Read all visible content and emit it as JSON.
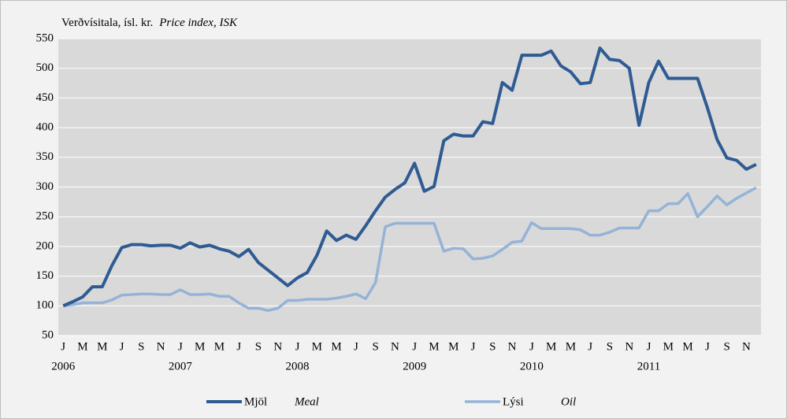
{
  "chart_data": {
    "type": "line",
    "title": {
      "text": "Verðvísitala, ísl. kr.",
      "italic": "Price index, ISK"
    },
    "categories": [
      "J",
      null,
      "M",
      null,
      "M",
      null,
      "J",
      null,
      "S",
      null,
      "N",
      null,
      "J",
      null,
      "M",
      null,
      "M",
      null,
      "J",
      null,
      "S",
      null,
      "N",
      null,
      "J",
      null,
      "M",
      null,
      "M",
      null,
      "J",
      null,
      "S",
      null,
      "N",
      null,
      "J",
      null,
      "M",
      null,
      "M",
      null,
      "J",
      null,
      "S",
      null,
      "N",
      null,
      "J",
      null,
      "M",
      null,
      "M",
      null,
      "J",
      null,
      "S",
      null,
      "N",
      null,
      "J",
      null,
      "M",
      null,
      "M",
      null,
      "J",
      null,
      "S",
      null,
      "N",
      null
    ],
    "years": [
      "2006",
      "2007",
      "2008",
      "2009",
      "2010",
      "2011"
    ],
    "series": [
      {
        "name": "Mjöl",
        "name_italic": "Meal",
        "color": "#2f5b93",
        "values": [
          100,
          107,
          115,
          132,
          132,
          168,
          198,
          203,
          203,
          201,
          202,
          202,
          197,
          206,
          199,
          202,
          196,
          192,
          183,
          195,
          173,
          160,
          147,
          134,
          147,
          156,
          185,
          226,
          210,
          219,
          212,
          235,
          260,
          283,
          296,
          307,
          340,
          293,
          301,
          378,
          389,
          386,
          386,
          410,
          407,
          476,
          463,
          522,
          522,
          522,
          529,
          504,
          494,
          474,
          476,
          534,
          515,
          513,
          500,
          404,
          476,
          512,
          483,
          483,
          483,
          483,
          434,
          380,
          349,
          345,
          330,
          338
        ]
      },
      {
        "name": "Lýsi",
        "name_italic": "Oil",
        "color": "#95b3d7",
        "values": [
          100,
          102,
          105,
          105,
          105,
          110,
          118,
          119,
          120,
          120,
          119,
          119,
          127,
          119,
          119,
          120,
          116,
          116,
          105,
          96,
          96,
          92,
          96,
          109,
          109,
          111,
          111,
          111,
          113,
          116,
          120,
          112,
          139,
          233,
          239,
          239,
          239,
          239,
          239,
          192,
          197,
          196,
          179,
          180,
          184,
          195,
          207,
          209,
          240,
          230,
          230,
          230,
          230,
          228,
          219,
          219,
          224,
          231,
          231,
          231,
          260,
          260,
          272,
          272,
          289,
          250,
          267,
          285,
          270,
          281,
          290,
          299
        ]
      }
    ],
    "ylim": [
      50,
      550
    ],
    "yticks": [
      50,
      100,
      150,
      200,
      250,
      300,
      350,
      400,
      450,
      500,
      550
    ],
    "grid": true
  }
}
